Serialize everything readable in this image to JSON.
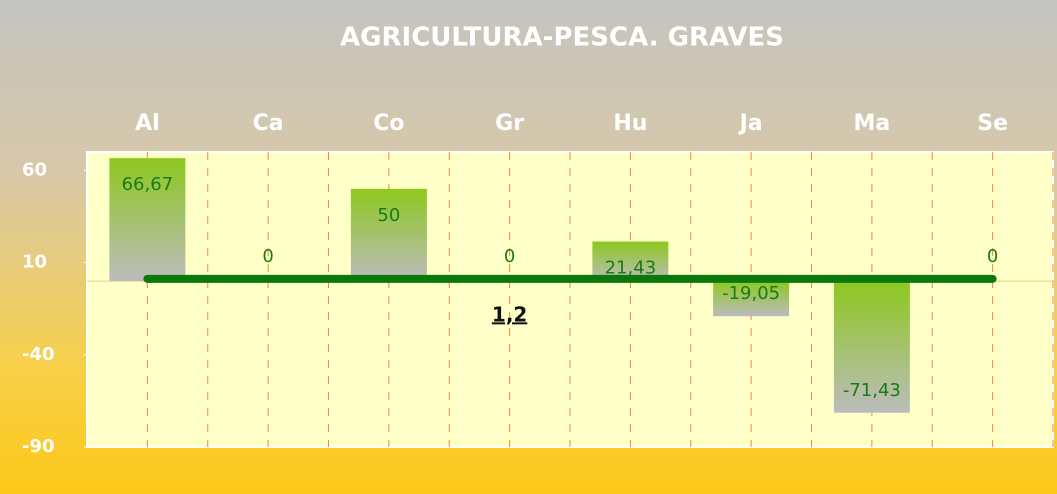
{
  "chart_data": {
    "type": "bar",
    "title": "AGRICULTURA-PESCA. GRAVES",
    "categories": [
      "Al",
      "Ca",
      "Co",
      "Gr",
      "Hu",
      "Ja",
      "Ma",
      "Se"
    ],
    "values": [
      66.67,
      0,
      50,
      0,
      21.43,
      -19.05,
      -71.43,
      0
    ],
    "value_labels": [
      "66,67",
      "0",
      "50",
      "0",
      "21,43",
      "-19,05",
      "-71,43",
      "0"
    ],
    "color": "#8cc81e",
    "ylim": [
      -90,
      70
    ],
    "yticks": [
      60,
      10,
      -40,
      -90
    ],
    "average": {
      "value": 1.2,
      "label": "1,2"
    },
    "average_color": "#0a780a"
  }
}
